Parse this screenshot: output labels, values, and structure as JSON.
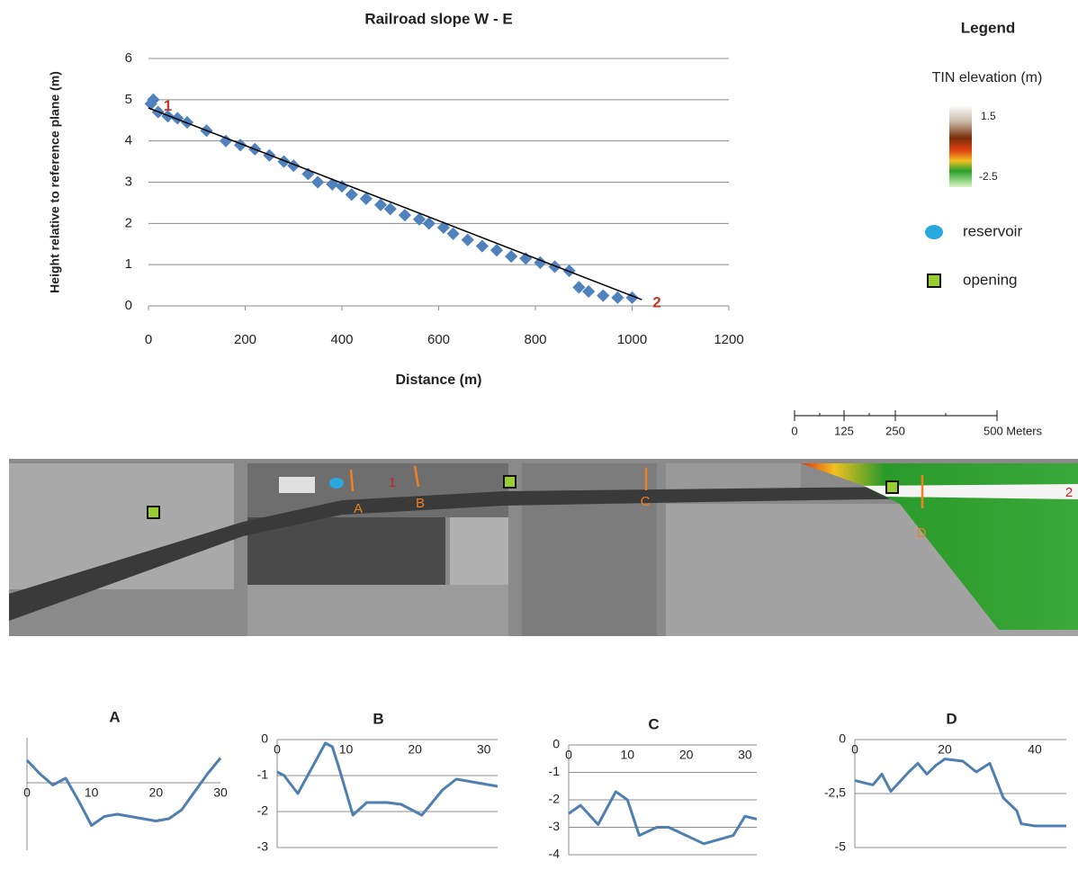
{
  "chart_data": [
    {
      "type": "scatter",
      "title": "Railroad slope W - E",
      "x_label": "Distance (m)",
      "y_label": "Height relative to reference plane (m)",
      "xlim": [
        0,
        1200
      ],
      "xticks": [
        0,
        200,
        400,
        600,
        800,
        1000,
        1200
      ],
      "ylim": [
        0,
        6
      ],
      "yticks": [
        0,
        1,
        2,
        3,
        4,
        5,
        6
      ],
      "grid": true,
      "annotations": [
        "1",
        "2"
      ],
      "series": [
        {
          "type": "scatter",
          "color": "#4f81bd",
          "x": [
            5,
            10,
            20,
            40,
            60,
            80,
            120,
            160,
            190,
            220,
            250,
            280,
            300,
            330,
            350,
            380,
            400,
            420,
            450,
            480,
            500,
            530,
            560,
            580,
            610,
            630,
            660,
            690,
            720,
            750,
            780,
            810,
            840,
            870,
            890,
            910,
            940,
            970,
            1000
          ],
          "values": [
            4.9,
            5.0,
            4.7,
            4.6,
            4.55,
            4.45,
            4.25,
            4.0,
            3.9,
            3.8,
            3.65,
            3.5,
            3.4,
            3.2,
            3.0,
            2.95,
            2.9,
            2.7,
            2.6,
            2.45,
            2.35,
            2.2,
            2.1,
            2.0,
            1.9,
            1.75,
            1.6,
            1.45,
            1.35,
            1.2,
            1.15,
            1.05,
            0.95,
            0.85,
            0.45,
            0.35,
            0.25,
            0.2,
            0.2
          ]
        },
        {
          "type": "line",
          "color": "#000000",
          "x": [
            0,
            1020
          ],
          "values": [
            4.8,
            0.15
          ]
        }
      ]
    },
    {
      "type": "line",
      "title": "A",
      "xlim": [
        0,
        30
      ],
      "xticks": [
        0,
        10,
        20,
        30
      ],
      "ylim": [
        -1.5,
        1
      ],
      "grid": false,
      "series": [
        {
          "color": "#4f7fb0",
          "x": [
            0,
            2,
            4,
            6,
            8,
            10,
            12,
            14,
            16,
            18,
            20,
            22,
            24,
            26,
            28,
            30
          ],
          "values": [
            0.5,
            0.2,
            -0.05,
            0.1,
            -0.4,
            -0.95,
            -0.75,
            -0.7,
            -0.75,
            -0.8,
            -0.85,
            -0.8,
            -0.6,
            -0.2,
            0.2,
            0.55
          ]
        }
      ]
    },
    {
      "type": "line",
      "title": "B",
      "xlim": [
        0,
        32
      ],
      "xticks": [
        0,
        10,
        20,
        30
      ],
      "ylim": [
        -3,
        0
      ],
      "yticks": [
        0,
        -1,
        -2,
        -3
      ],
      "grid": true,
      "series": [
        {
          "color": "#4f7fb0",
          "x": [
            0,
            1,
            3,
            5,
            7,
            8,
            9,
            11,
            13,
            16,
            18,
            21,
            24,
            26,
            29,
            32
          ],
          "values": [
            -0.9,
            -1.0,
            -1.5,
            -0.8,
            -0.1,
            -0.2,
            -0.8,
            -2.1,
            -1.75,
            -1.75,
            -1.8,
            -2.1,
            -1.4,
            -1.1,
            -1.2,
            -1.3
          ]
        }
      ]
    },
    {
      "type": "line",
      "title": "C",
      "xlim": [
        0,
        32
      ],
      "xticks": [
        0,
        10,
        20,
        30
      ],
      "ylim": [
        -4,
        0
      ],
      "yticks": [
        0,
        -1,
        -2,
        -3,
        -4
      ],
      "grid": true,
      "series": [
        {
          "color": "#4f7fb0",
          "x": [
            0,
            2,
            5,
            8,
            10,
            12,
            15,
            17,
            19,
            23,
            28,
            30,
            32
          ],
          "values": [
            -2.5,
            -2.2,
            -2.9,
            -1.7,
            -2.0,
            -3.3,
            -3.0,
            -3.0,
            -3.2,
            -3.6,
            -3.3,
            -2.6,
            -2.7
          ]
        }
      ]
    },
    {
      "type": "line",
      "title": "D",
      "xlim": [
        0,
        47
      ],
      "xticks": [
        0,
        20,
        40
      ],
      "ylim": [
        -5,
        0
      ],
      "yticks": [
        0,
        {
          "value": -2.5,
          "label": "-2,5"
        },
        -5
      ],
      "grid": true,
      "series": [
        {
          "color": "#4f7fb0",
          "x": [
            0,
            4,
            6,
            8,
            12,
            14,
            16,
            18,
            20,
            24,
            27,
            30,
            33,
            36,
            37,
            40,
            47
          ],
          "values": [
            -1.9,
            -2.1,
            -1.6,
            -2.4,
            -1.5,
            -1.1,
            -1.6,
            -1.2,
            -0.9,
            -1.0,
            -1.5,
            -1.1,
            -2.7,
            -3.3,
            -3.9,
            -4.0,
            -4.0
          ]
        }
      ]
    }
  ],
  "legend": {
    "title": "Legend",
    "tin_label": "TIN elevation (m)",
    "tin_max": 1.5,
    "tin_min": -2.5,
    "reservoir": "reservoir",
    "opening": "opening"
  },
  "map": {
    "sections": [
      "A",
      "B",
      "C",
      "D"
    ],
    "points": [
      "1",
      "2"
    ],
    "scale": [
      "0",
      "125",
      "250",
      "500 Meters"
    ]
  }
}
